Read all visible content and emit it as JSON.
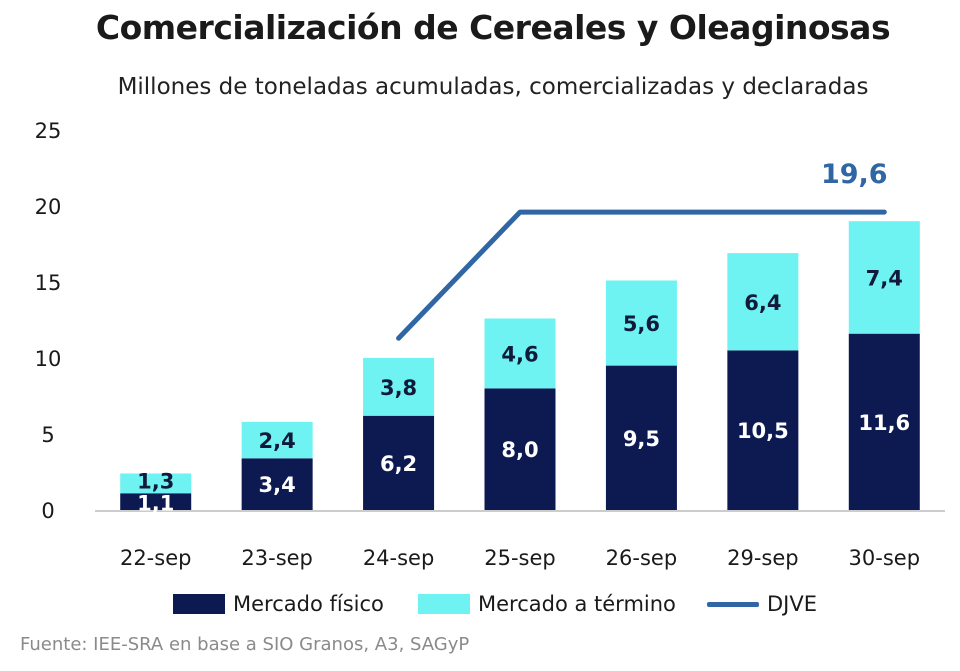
{
  "title": "Comercialización de Cereales y Oleaginosas",
  "subtitle": "Millones de toneladas acumuladas, comercializadas y declaradas",
  "source": "Fuente: IEE-SRA en base a SIO Granos, A3, SAGyP",
  "colors": {
    "fisico": "#0d1a52",
    "termino": "#6ef2f2",
    "djve": "#2f66a3",
    "axis": "#cccccc"
  },
  "legend": {
    "fisico": "Mercado físico",
    "termino": "Mercado a término",
    "djve": "DJVE"
  },
  "chart_data": {
    "type": "bar",
    "stacked": true,
    "categories": [
      "22-sep",
      "23-sep",
      "24-sep",
      "25-sep",
      "26-sep",
      "29-sep",
      "30-sep"
    ],
    "series": [
      {
        "name": "Mercado físico",
        "values": [
          1.1,
          3.4,
          6.2,
          8.0,
          9.5,
          10.5,
          11.6
        ],
        "labels": [
          "1,1",
          "3,4",
          "6,2",
          "8,0",
          "9,5",
          "10,5",
          "11,6"
        ]
      },
      {
        "name": "Mercado a término",
        "values": [
          1.3,
          2.4,
          3.8,
          4.6,
          5.6,
          6.4,
          7.4
        ],
        "labels": [
          "1,3",
          "2,4",
          "3,8",
          "4,6",
          "5,6",
          "6,4",
          "7,4"
        ]
      }
    ],
    "line": {
      "name": "DJVE",
      "points": [
        {
          "category": "24-sep",
          "value": 11.3
        },
        {
          "category": "25-sep",
          "value": 19.6
        },
        {
          "category": "30-sep",
          "value": 19.6
        }
      ],
      "end_label": "19,6"
    },
    "ylim": [
      0,
      25
    ],
    "yticks": [
      0,
      5,
      10,
      15,
      20,
      25
    ],
    "ytick_labels": [
      "0",
      "5",
      "10",
      "15",
      "20",
      "25"
    ],
    "grid": false,
    "legend_position": "bottom"
  }
}
